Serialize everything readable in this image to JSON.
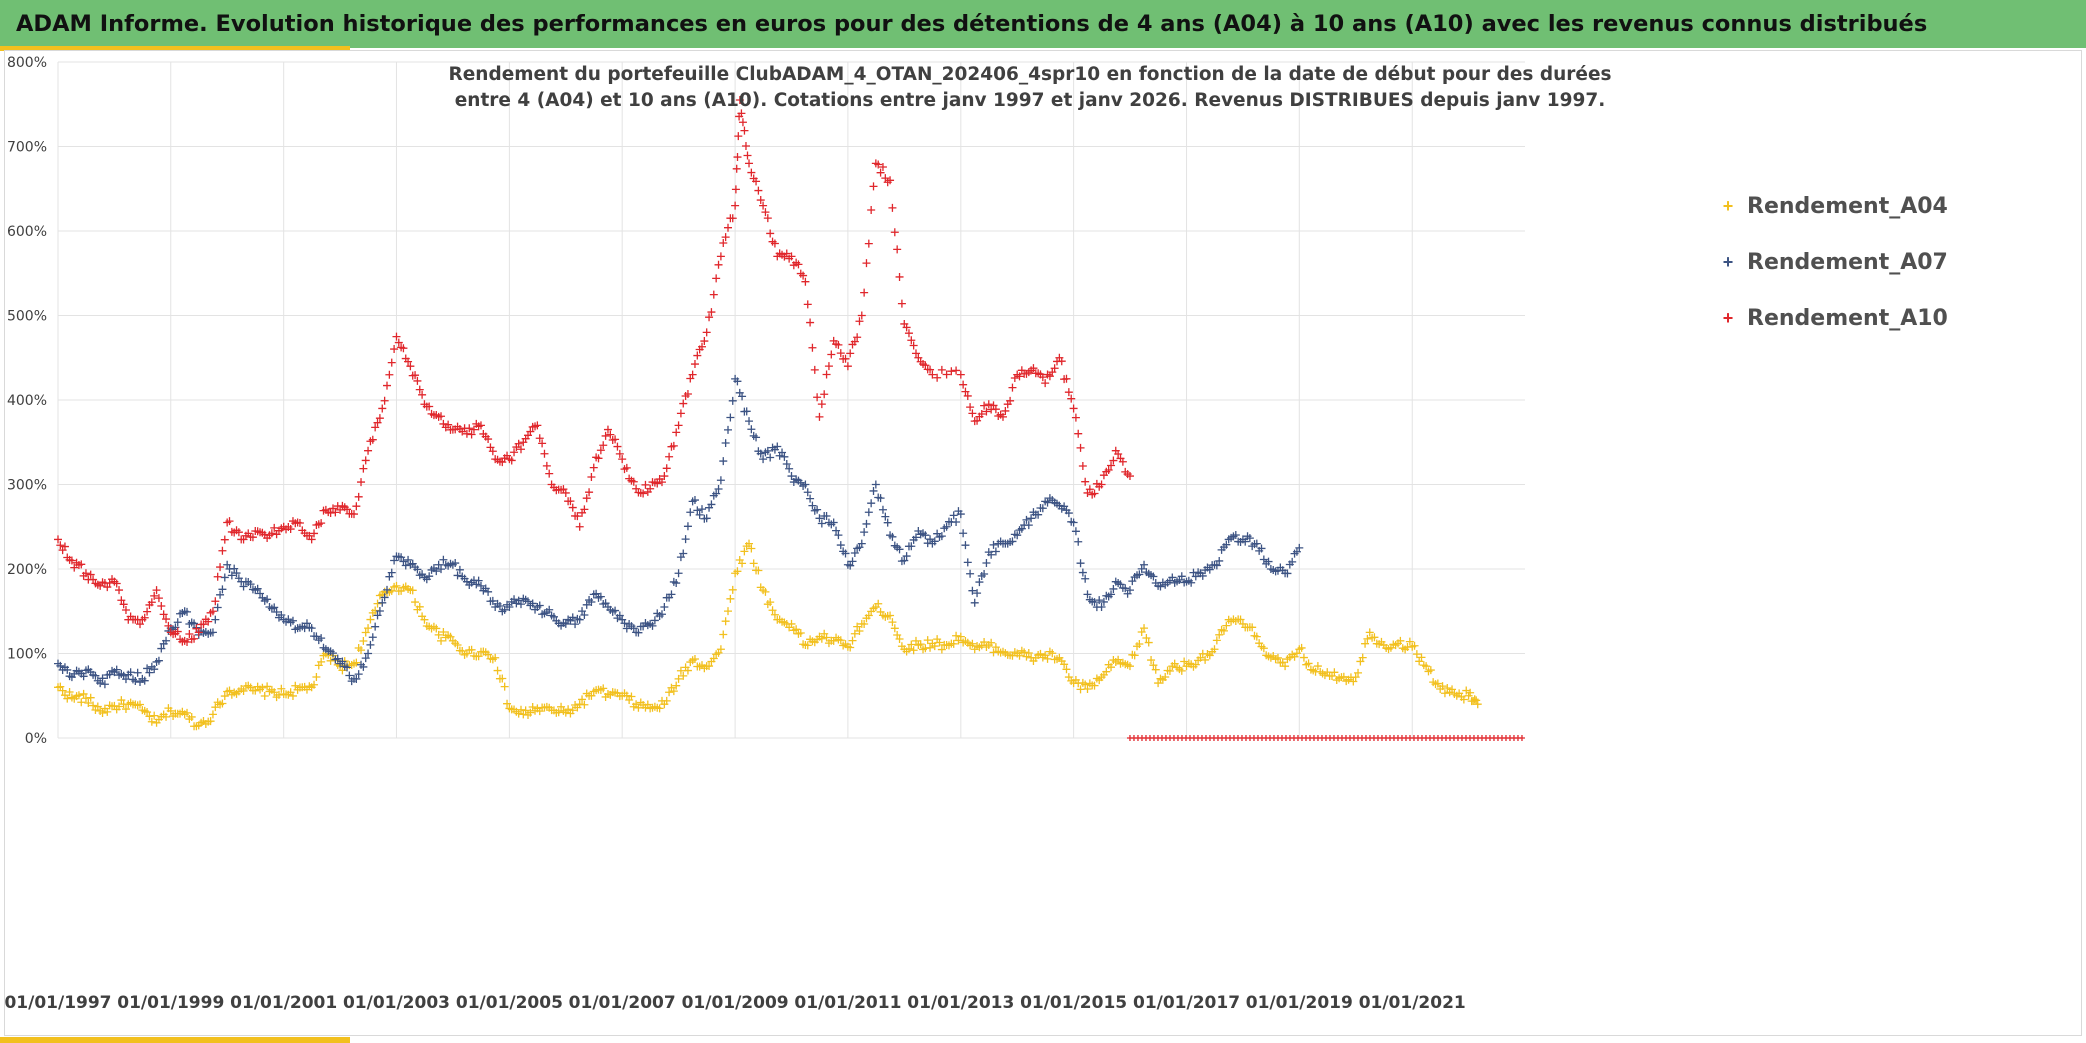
{
  "banner": {
    "title": "ADAM Informe. Evolution historique des performances en euros pour des détentions de 4 ans (A04) à 10 ans (A10) avec les revenus connus distribués"
  },
  "chart_data": {
    "type": "scatter",
    "title_line1": "Rendement du portefeuille ClubADAM_4_OTAN_202406_4spr10  en fonction de la date de début pour des durées",
    "title_line2": "entre 4 (A04) et 10 ans (A10). Cotations entre janv 1997 et janv 2026. Revenus DISTRIBUES depuis janv 1997.",
    "xlabel": "",
    "ylabel": "",
    "xlim": [
      "1997-01-01",
      "2023-01-01"
    ],
    "ylim": [
      0,
      8
    ],
    "x_ticks": [
      "01/01/1997",
      "01/01/1999",
      "01/01/2001",
      "01/01/2003",
      "01/01/2005",
      "01/01/2007",
      "01/01/2009",
      "01/01/2011",
      "01/01/2013",
      "01/01/2015",
      "01/01/2017",
      "01/01/2019",
      "01/01/2021"
    ],
    "y_ticks": [
      "0%",
      "100%",
      "200%",
      "300%",
      "400%",
      "500%",
      "600%",
      "700%",
      "800%"
    ],
    "grid": true,
    "legend_position": "top-right",
    "marker": "+",
    "series": [
      {
        "name": "Rendement_A04",
        "color": "#f2c01e",
        "points": [
          [
            "1997-01-01",
            0.6
          ],
          [
            "1997-04-01",
            0.48
          ],
          [
            "1997-07-01",
            0.47
          ],
          [
            "1997-10-01",
            0.32
          ],
          [
            "1998-01-01",
            0.38
          ],
          [
            "1998-04-01",
            0.4
          ],
          [
            "1998-07-01",
            0.33
          ],
          [
            "1998-10-01",
            0.18
          ],
          [
            "1999-01-01",
            0.32
          ],
          [
            "1999-04-01",
            0.28
          ],
          [
            "1999-07-01",
            0.15
          ],
          [
            "1999-10-01",
            0.28
          ],
          [
            "2000-01-01",
            0.55
          ],
          [
            "2000-04-01",
            0.58
          ],
          [
            "2000-07-01",
            0.56
          ],
          [
            "2000-10-01",
            0.55
          ],
          [
            "2001-01-01",
            0.52
          ],
          [
            "2001-04-01",
            0.57
          ],
          [
            "2001-07-01",
            0.6
          ],
          [
            "2001-10-01",
            1.0
          ],
          [
            "2002-01-01",
            0.85
          ],
          [
            "2002-04-01",
            0.88
          ],
          [
            "2002-07-01",
            1.3
          ],
          [
            "2002-10-01",
            1.7
          ],
          [
            "2003-01-01",
            1.8
          ],
          [
            "2003-04-01",
            1.75
          ],
          [
            "2003-07-01",
            1.4
          ],
          [
            "2003-10-01",
            1.22
          ],
          [
            "2004-01-01",
            1.15
          ],
          [
            "2004-04-01",
            1.0
          ],
          [
            "2004-07-01",
            1.02
          ],
          [
            "2004-10-01",
            0.95
          ],
          [
            "2005-01-01",
            0.35
          ],
          [
            "2005-04-01",
            0.28
          ],
          [
            "2005-07-01",
            0.35
          ],
          [
            "2005-10-01",
            0.33
          ],
          [
            "2006-01-01",
            0.3
          ],
          [
            "2006-04-01",
            0.4
          ],
          [
            "2006-07-01",
            0.55
          ],
          [
            "2006-10-01",
            0.52
          ],
          [
            "2007-01-01",
            0.5
          ],
          [
            "2007-04-01",
            0.4
          ],
          [
            "2007-07-01",
            0.35
          ],
          [
            "2007-10-01",
            0.4
          ],
          [
            "2008-01-01",
            0.7
          ],
          [
            "2008-04-01",
            0.92
          ],
          [
            "2008-07-01",
            0.85
          ],
          [
            "2008-10-01",
            1.05
          ],
          [
            "2009-01-01",
            1.95
          ],
          [
            "2009-04-01",
            2.3
          ],
          [
            "2009-07-01",
            1.75
          ],
          [
            "2009-10-01",
            1.4
          ],
          [
            "2010-01-01",
            1.35
          ],
          [
            "2010-04-01",
            1.1
          ],
          [
            "2010-07-01",
            1.2
          ],
          [
            "2010-10-01",
            1.15
          ],
          [
            "2011-01-01",
            1.08
          ],
          [
            "2011-04-01",
            1.35
          ],
          [
            "2011-07-01",
            1.55
          ],
          [
            "2011-10-01",
            1.45
          ],
          [
            "2012-01-01",
            1.05
          ],
          [
            "2012-04-01",
            1.1
          ],
          [
            "2012-07-01",
            1.12
          ],
          [
            "2012-10-01",
            1.1
          ],
          [
            "2013-01-01",
            1.2
          ],
          [
            "2013-04-01",
            1.05
          ],
          [
            "2013-07-01",
            1.1
          ],
          [
            "2013-10-01",
            1.02
          ],
          [
            "2014-01-01",
            1.0
          ],
          [
            "2014-04-01",
            0.95
          ],
          [
            "2014-07-01",
            0.98
          ],
          [
            "2014-10-01",
            0.95
          ],
          [
            "2015-01-01",
            0.65
          ],
          [
            "2015-04-01",
            0.58
          ],
          [
            "2015-07-01",
            0.72
          ],
          [
            "2015-10-01",
            0.9
          ],
          [
            "2016-01-01",
            0.85
          ],
          [
            "2016-04-01",
            1.3
          ],
          [
            "2016-07-01",
            0.65
          ],
          [
            "2016-10-01",
            0.85
          ],
          [
            "2017-01-01",
            0.85
          ],
          [
            "2017-04-01",
            0.95
          ],
          [
            "2017-07-01",
            1.05
          ],
          [
            "2017-10-01",
            1.4
          ],
          [
            "2018-01-01",
            1.35
          ],
          [
            "2018-04-01",
            1.2
          ],
          [
            "2018-07-01",
            0.95
          ],
          [
            "2018-10-01",
            0.85
          ],
          [
            "2019-01-01",
            1.05
          ],
          [
            "2019-04-01",
            0.8
          ],
          [
            "2019-07-01",
            0.78
          ],
          [
            "2019-10-01",
            0.72
          ],
          [
            "2020-01-01",
            0.72
          ],
          [
            "2020-04-01",
            1.25
          ],
          [
            "2020-07-01",
            1.1
          ],
          [
            "2020-10-01",
            1.12
          ],
          [
            "2021-01-01",
            1.08
          ],
          [
            "2021-04-01",
            0.85
          ],
          [
            "2021-07-01",
            0.58
          ],
          [
            "2021-10-01",
            0.52
          ],
          [
            "2022-01-01",
            0.5
          ],
          [
            "2022-03-01",
            0.4
          ]
        ]
      },
      {
        "name": "Rendement_A07",
        "color": "#3c5383",
        "points": [
          [
            "1997-01-01",
            0.88
          ],
          [
            "1997-04-01",
            0.72
          ],
          [
            "1997-07-01",
            0.8
          ],
          [
            "1997-10-01",
            0.65
          ],
          [
            "1998-01-01",
            0.78
          ],
          [
            "1998-04-01",
            0.75
          ],
          [
            "1998-07-01",
            0.7
          ],
          [
            "1998-10-01",
            0.9
          ],
          [
            "1999-01-01",
            1.3
          ],
          [
            "1999-04-01",
            1.5
          ],
          [
            "1999-07-01",
            1.22
          ],
          [
            "1999-10-01",
            1.25
          ],
          [
            "2000-01-01",
            2.05
          ],
          [
            "2000-04-01",
            1.85
          ],
          [
            "2000-07-01",
            1.75
          ],
          [
            "2000-10-01",
            1.55
          ],
          [
            "2001-01-01",
            1.4
          ],
          [
            "2001-04-01",
            1.3
          ],
          [
            "2001-07-01",
            1.3
          ],
          [
            "2001-10-01",
            1.05
          ],
          [
            "2002-01-01",
            0.88
          ],
          [
            "2002-04-01",
            0.7
          ],
          [
            "2002-07-01",
            1.0
          ],
          [
            "2002-10-01",
            1.6
          ],
          [
            "2003-01-01",
            2.15
          ],
          [
            "2003-04-01",
            2.05
          ],
          [
            "2003-07-01",
            1.9
          ],
          [
            "2003-10-01",
            2.05
          ],
          [
            "2004-01-01",
            2.05
          ],
          [
            "2004-04-01",
            1.85
          ],
          [
            "2004-07-01",
            1.8
          ],
          [
            "2004-10-01",
            1.55
          ],
          [
            "2005-01-01",
            1.55
          ],
          [
            "2005-04-01",
            1.65
          ],
          [
            "2005-07-01",
            1.55
          ],
          [
            "2005-10-01",
            1.45
          ],
          [
            "2006-01-01",
            1.35
          ],
          [
            "2006-04-01",
            1.4
          ],
          [
            "2006-07-01",
            1.7
          ],
          [
            "2006-10-01",
            1.55
          ],
          [
            "2007-01-01",
            1.4
          ],
          [
            "2007-04-01",
            1.25
          ],
          [
            "2007-07-01",
            1.35
          ],
          [
            "2007-10-01",
            1.55
          ],
          [
            "2008-01-01",
            1.95
          ],
          [
            "2008-04-01",
            2.8
          ],
          [
            "2008-07-01",
            2.6
          ],
          [
            "2008-10-01",
            3.05
          ],
          [
            "2009-01-01",
            4.25
          ],
          [
            "2009-04-01",
            3.75
          ],
          [
            "2009-07-01",
            3.3
          ],
          [
            "2009-10-01",
            3.45
          ],
          [
            "2010-01-01",
            3.1
          ],
          [
            "2010-04-01",
            3.0
          ],
          [
            "2010-07-01",
            2.6
          ],
          [
            "2010-10-01",
            2.55
          ],
          [
            "2011-01-01",
            2.05
          ],
          [
            "2011-04-01",
            2.3
          ],
          [
            "2011-07-01",
            3.0
          ],
          [
            "2011-10-01",
            2.4
          ],
          [
            "2012-01-01",
            2.1
          ],
          [
            "2012-04-01",
            2.45
          ],
          [
            "2012-07-01",
            2.3
          ],
          [
            "2012-10-01",
            2.5
          ],
          [
            "2013-01-01",
            2.65
          ],
          [
            "2013-04-01",
            1.6
          ],
          [
            "2013-07-01",
            2.2
          ],
          [
            "2013-10-01",
            2.3
          ],
          [
            "2014-01-01",
            2.4
          ],
          [
            "2014-04-01",
            2.6
          ],
          [
            "2014-07-01",
            2.8
          ],
          [
            "2014-10-01",
            2.75
          ],
          [
            "2015-01-01",
            2.55
          ],
          [
            "2015-04-01",
            1.7
          ],
          [
            "2015-07-01",
            1.55
          ],
          [
            "2015-10-01",
            1.85
          ],
          [
            "2016-01-01",
            1.75
          ],
          [
            "2016-04-01",
            2.05
          ],
          [
            "2016-07-01",
            1.8
          ],
          [
            "2016-10-01",
            1.9
          ],
          [
            "2017-01-01",
            1.85
          ],
          [
            "2017-04-01",
            1.95
          ],
          [
            "2017-07-01",
            2.05
          ],
          [
            "2017-10-01",
            2.35
          ],
          [
            "2018-01-01",
            2.35
          ],
          [
            "2018-04-01",
            2.3
          ],
          [
            "2018-07-01",
            2.0
          ],
          [
            "2018-10-01",
            1.95
          ],
          [
            "2019-01-01",
            2.25
          ]
        ]
      },
      {
        "name": "Rendement_A10",
        "color": "#e0262b",
        "points": [
          [
            "1997-01-01",
            2.35
          ],
          [
            "1997-04-01",
            2.1
          ],
          [
            "1997-07-01",
            1.95
          ],
          [
            "1997-10-01",
            1.8
          ],
          [
            "1998-01-01",
            1.85
          ],
          [
            "1998-04-01",
            1.4
          ],
          [
            "1998-07-01",
            1.4
          ],
          [
            "1998-10-01",
            1.75
          ],
          [
            "1999-01-01",
            1.25
          ],
          [
            "1999-04-01",
            1.15
          ],
          [
            "1999-07-01",
            1.25
          ],
          [
            "1999-10-01",
            1.5
          ],
          [
            "2000-01-01",
            2.55
          ],
          [
            "2000-04-01",
            2.35
          ],
          [
            "2000-07-01",
            2.45
          ],
          [
            "2000-10-01",
            2.4
          ],
          [
            "2001-01-01",
            2.5
          ],
          [
            "2001-04-01",
            2.55
          ],
          [
            "2001-07-01",
            2.35
          ],
          [
            "2001-10-01",
            2.7
          ],
          [
            "2002-01-01",
            2.7
          ],
          [
            "2002-04-01",
            2.65
          ],
          [
            "2002-07-01",
            3.4
          ],
          [
            "2002-10-01",
            3.9
          ],
          [
            "2003-01-01",
            4.75
          ],
          [
            "2003-04-01",
            4.4
          ],
          [
            "2003-07-01",
            3.95
          ],
          [
            "2003-10-01",
            3.8
          ],
          [
            "2004-01-01",
            3.65
          ],
          [
            "2004-04-01",
            3.6
          ],
          [
            "2004-07-01",
            3.7
          ],
          [
            "2004-10-01",
            3.3
          ],
          [
            "2005-01-01",
            3.3
          ],
          [
            "2005-04-01",
            3.5
          ],
          [
            "2005-07-01",
            3.7
          ],
          [
            "2005-10-01",
            3.0
          ],
          [
            "2006-01-01",
            2.9
          ],
          [
            "2006-04-01",
            2.5
          ],
          [
            "2006-07-01",
            3.2
          ],
          [
            "2006-10-01",
            3.65
          ],
          [
            "2007-01-01",
            3.3
          ],
          [
            "2007-04-01",
            2.95
          ],
          [
            "2007-07-01",
            2.95
          ],
          [
            "2007-10-01",
            3.1
          ],
          [
            "2008-01-01",
            3.7
          ],
          [
            "2008-04-01",
            4.3
          ],
          [
            "2008-07-01",
            4.8
          ],
          [
            "2008-10-01",
            5.7
          ],
          [
            "2009-01-01",
            6.3
          ],
          [
            "2009-02-01",
            7.55
          ],
          [
            "2009-04-01",
            6.8
          ],
          [
            "2009-07-01",
            6.3
          ],
          [
            "2009-10-01",
            5.7
          ],
          [
            "2010-01-01",
            5.7
          ],
          [
            "2010-04-01",
            5.4
          ],
          [
            "2010-07-01",
            3.8
          ],
          [
            "2010-10-01",
            4.7
          ],
          [
            "2011-01-01",
            4.4
          ],
          [
            "2011-04-01",
            5.0
          ],
          [
            "2011-07-01",
            6.8
          ],
          [
            "2011-10-01",
            6.6
          ],
          [
            "2012-01-01",
            4.9
          ],
          [
            "2012-04-01",
            4.5
          ],
          [
            "2012-07-01",
            4.3
          ],
          [
            "2013-01-01",
            4.3
          ],
          [
            "2013-04-01",
            3.75
          ],
          [
            "2013-07-01",
            3.95
          ],
          [
            "2013-10-01",
            3.8
          ],
          [
            "2014-01-01",
            4.3
          ],
          [
            "2014-04-01",
            4.35
          ],
          [
            "2014-07-01",
            4.2
          ],
          [
            "2014-10-01",
            4.5
          ],
          [
            "2015-01-01",
            3.9
          ],
          [
            "2015-04-01",
            2.9
          ],
          [
            "2015-07-01",
            3.0
          ],
          [
            "2015-10-01",
            3.4
          ],
          [
            "2016-01-01",
            3.1
          ]
        ],
        "baseline_from": "2016-01-01",
        "baseline_to": "2022-12-31"
      }
    ]
  }
}
